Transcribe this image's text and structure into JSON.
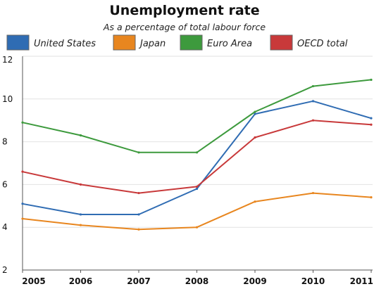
{
  "chart_data": {
    "type": "line",
    "title": "Unemployment rate",
    "subtitle": "As a percentage of total labour force",
    "xlabel": "",
    "ylabel": "",
    "x": [
      "2005",
      "2006",
      "2007",
      "2008",
      "2009",
      "2010",
      "2011"
    ],
    "ylim": [
      2,
      12
    ],
    "yticks": [
      2,
      4,
      6,
      8,
      10,
      12
    ],
    "grid": true,
    "legend_position": "top",
    "series": [
      {
        "name": "United States",
        "color": "#2f6cb3",
        "values": [
          5.1,
          4.6,
          4.6,
          5.8,
          9.3,
          9.9,
          9.1
        ]
      },
      {
        "name": "Japan",
        "color": "#e8861f",
        "values": [
          4.4,
          4.1,
          3.9,
          4.0,
          5.2,
          5.6,
          5.4
        ]
      },
      {
        "name": "Euro Area",
        "color": "#3d9a3d",
        "values": [
          8.9,
          8.3,
          7.5,
          7.5,
          9.4,
          10.6,
          10.9
        ]
      },
      {
        "name": "OECD total",
        "color": "#c8393a",
        "values": [
          6.6,
          6.0,
          5.6,
          5.9,
          8.2,
          9.0,
          8.8
        ]
      }
    ]
  }
}
